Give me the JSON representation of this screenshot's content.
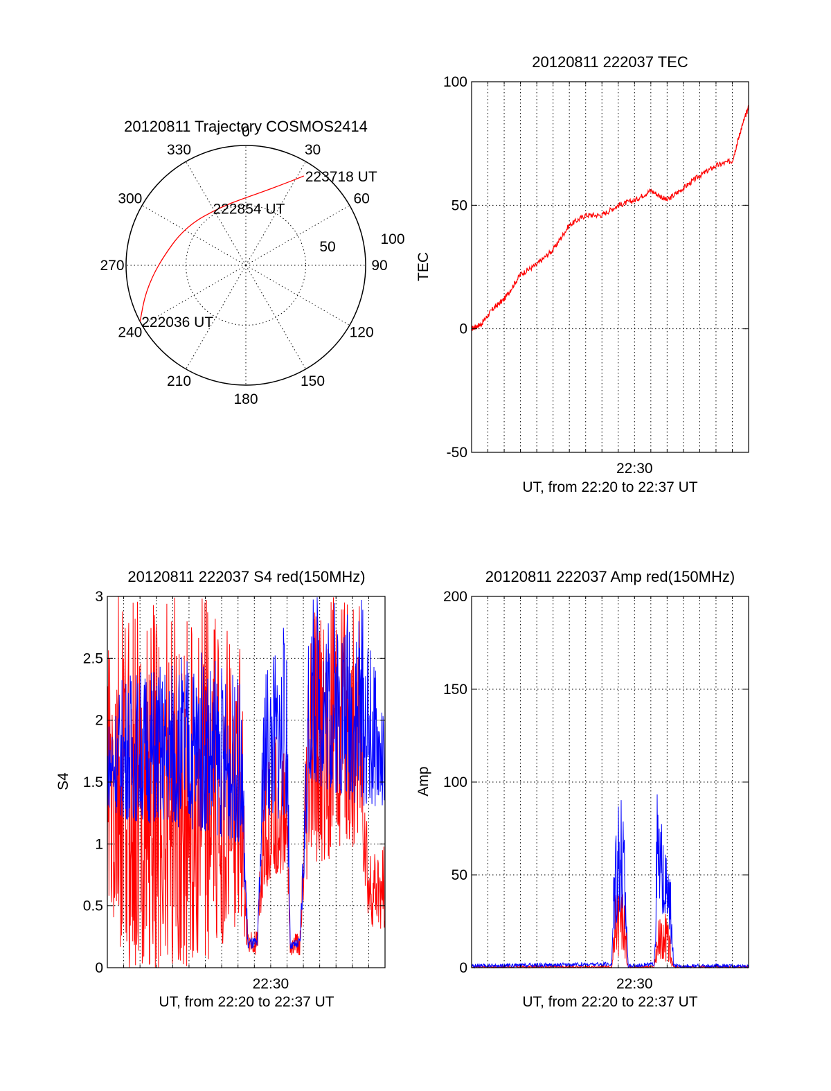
{
  "chart_data": [
    {
      "type": "polar",
      "title": "20120811 Trajectory COSMOS2414",
      "azimuth_labels": [
        "0",
        "30",
        "60",
        "90",
        "120",
        "150",
        "180",
        "210",
        "240",
        "270",
        "300",
        "330"
      ],
      "radial_labels": [
        "50",
        "100"
      ],
      "series": [
        {
          "color": "#ff0000",
          "points": [
            {
              "az": 242,
              "el": 0
            },
            {
              "az": 255,
              "el": 12
            },
            {
              "az": 272,
              "el": 25
            },
            {
              "az": 302,
              "el": 36
            },
            {
              "az": 338,
              "el": 42
            },
            {
              "az": 12,
              "el": 34
            },
            {
              "az": 27,
              "el": 20
            },
            {
              "az": 33,
              "el": 10
            }
          ]
        }
      ],
      "annotations": [
        {
          "text": "223718 UT",
          "az": 33,
          "el": 10
        },
        {
          "text": "222854 UT",
          "az": 329,
          "el": 40
        },
        {
          "text": "222036 UT",
          "az": 242,
          "el": 0
        }
      ]
    },
    {
      "type": "line",
      "title": "20120811 222037 TEC",
      "xlabel": "UT, from 22:20 to 22:37 UT",
      "ylabel": "TEC",
      "ylim": [
        -50,
        100
      ],
      "yticks": [
        "-50",
        "0",
        "50",
        "100"
      ],
      "xticks": [
        {
          "t": 10,
          "label": "22:30"
        }
      ],
      "xlim": [
        0,
        17
      ],
      "grid": true,
      "series": [
        {
          "color": "#ff0000",
          "points": [
            [
              0,
              0
            ],
            [
              0.6,
              2
            ],
            [
              1.3,
              8
            ],
            [
              2,
              12
            ],
            [
              3,
              22
            ],
            [
              4,
              26
            ],
            [
              5,
              32
            ],
            [
              6,
              42
            ],
            [
              7,
              46
            ],
            [
              8,
              46
            ],
            [
              9,
              50
            ],
            [
              10,
              52
            ],
            [
              11,
              56
            ],
            [
              12,
              52
            ],
            [
              13,
              57
            ],
            [
              14,
              62
            ],
            [
              15,
              66
            ],
            [
              16,
              68
            ],
            [
              16.5,
              80
            ],
            [
              17,
              90
            ]
          ]
        }
      ]
    },
    {
      "type": "line",
      "title": "20120811 222037 S4 red(150MHz)",
      "xlabel": "UT, from 22:20 to 22:37 UT",
      "ylabel": "S4",
      "ylim": [
        0,
        3
      ],
      "yticks": [
        "0",
        "0.5",
        "1",
        "1.5",
        "2",
        "2.5",
        "3"
      ],
      "xticks": [
        {
          "t": 10,
          "label": "22:30"
        }
      ],
      "xlim": [
        0,
        17
      ],
      "grid": true,
      "series": [
        {
          "color": "#ff0000",
          "envelope": [
            [
              0,
              0,
              3
            ],
            [
              6,
              0,
              3
            ],
            [
              8.2,
              0.4,
              2.6
            ],
            [
              8.6,
              0.1,
              0.3
            ],
            [
              9.2,
              0.1,
              0.3
            ],
            [
              9.6,
              0.6,
              2.0
            ],
            [
              11,
              0.8,
              1.8
            ],
            [
              11.2,
              0.1,
              0.25
            ],
            [
              11.8,
              0.1,
              0.3
            ],
            [
              12.4,
              0.8,
              3
            ],
            [
              15.4,
              1.0,
              3
            ],
            [
              16,
              0.3,
              0.9
            ],
            [
              17,
              0.3,
              1.0
            ]
          ]
        },
        {
          "color": "#0000ff",
          "envelope": [
            [
              0,
              1.3,
              2.0
            ],
            [
              1,
              1.2,
              2.4
            ],
            [
              6,
              1.1,
              2.6
            ],
            [
              8.2,
              1.0,
              2.3
            ],
            [
              8.6,
              0.15,
              0.25
            ],
            [
              9.2,
              0.15,
              0.25
            ],
            [
              9.6,
              1.2,
              2.5
            ],
            [
              11,
              1.2,
              2.8
            ],
            [
              11.2,
              0.15,
              0.2
            ],
            [
              11.8,
              0.15,
              0.25
            ],
            [
              12.4,
              1.5,
              3
            ],
            [
              15.6,
              1.3,
              3
            ],
            [
              17,
              1.3,
              2.0
            ]
          ]
        }
      ]
    },
    {
      "type": "line",
      "title": "20120811 222037 Amp red(150MHz)",
      "xlabel": "UT, from 22:20 to 22:37 UT",
      "ylabel": "Amp",
      "ylim": [
        0,
        200
      ],
      "yticks": [
        "0",
        "50",
        "100",
        "150",
        "200"
      ],
      "xticks": [
        {
          "t": 10,
          "label": "22:30"
        }
      ],
      "xlim": [
        0,
        17
      ],
      "grid": true,
      "series": [
        {
          "color": "#ff0000",
          "envelope": [
            [
              0,
              0,
              1
            ],
            [
              8.6,
              0,
              1
            ],
            [
              8.9,
              5,
              45
            ],
            [
              9.4,
              5,
              40
            ],
            [
              9.6,
              0,
              1
            ],
            [
              11.2,
              0,
              1
            ],
            [
              11.4,
              3,
              25
            ],
            [
              12.0,
              3,
              30
            ],
            [
              12.4,
              0,
              1
            ],
            [
              17,
              0,
              1
            ]
          ]
        },
        {
          "color": "#0000ff",
          "envelope": [
            [
              0,
              0,
              2
            ],
            [
              8.6,
              1,
              3
            ],
            [
              8.8,
              20,
              100
            ],
            [
              9.1,
              30,
              120
            ],
            [
              9.5,
              10,
              60
            ],
            [
              9.6,
              0,
              2
            ],
            [
              11.2,
              1,
              3
            ],
            [
              11.4,
              20,
              100
            ],
            [
              11.8,
              30,
              65
            ],
            [
              12.2,
              15,
              50
            ],
            [
              12.4,
              0,
              2
            ],
            [
              17,
              0,
              2
            ]
          ]
        }
      ]
    }
  ]
}
